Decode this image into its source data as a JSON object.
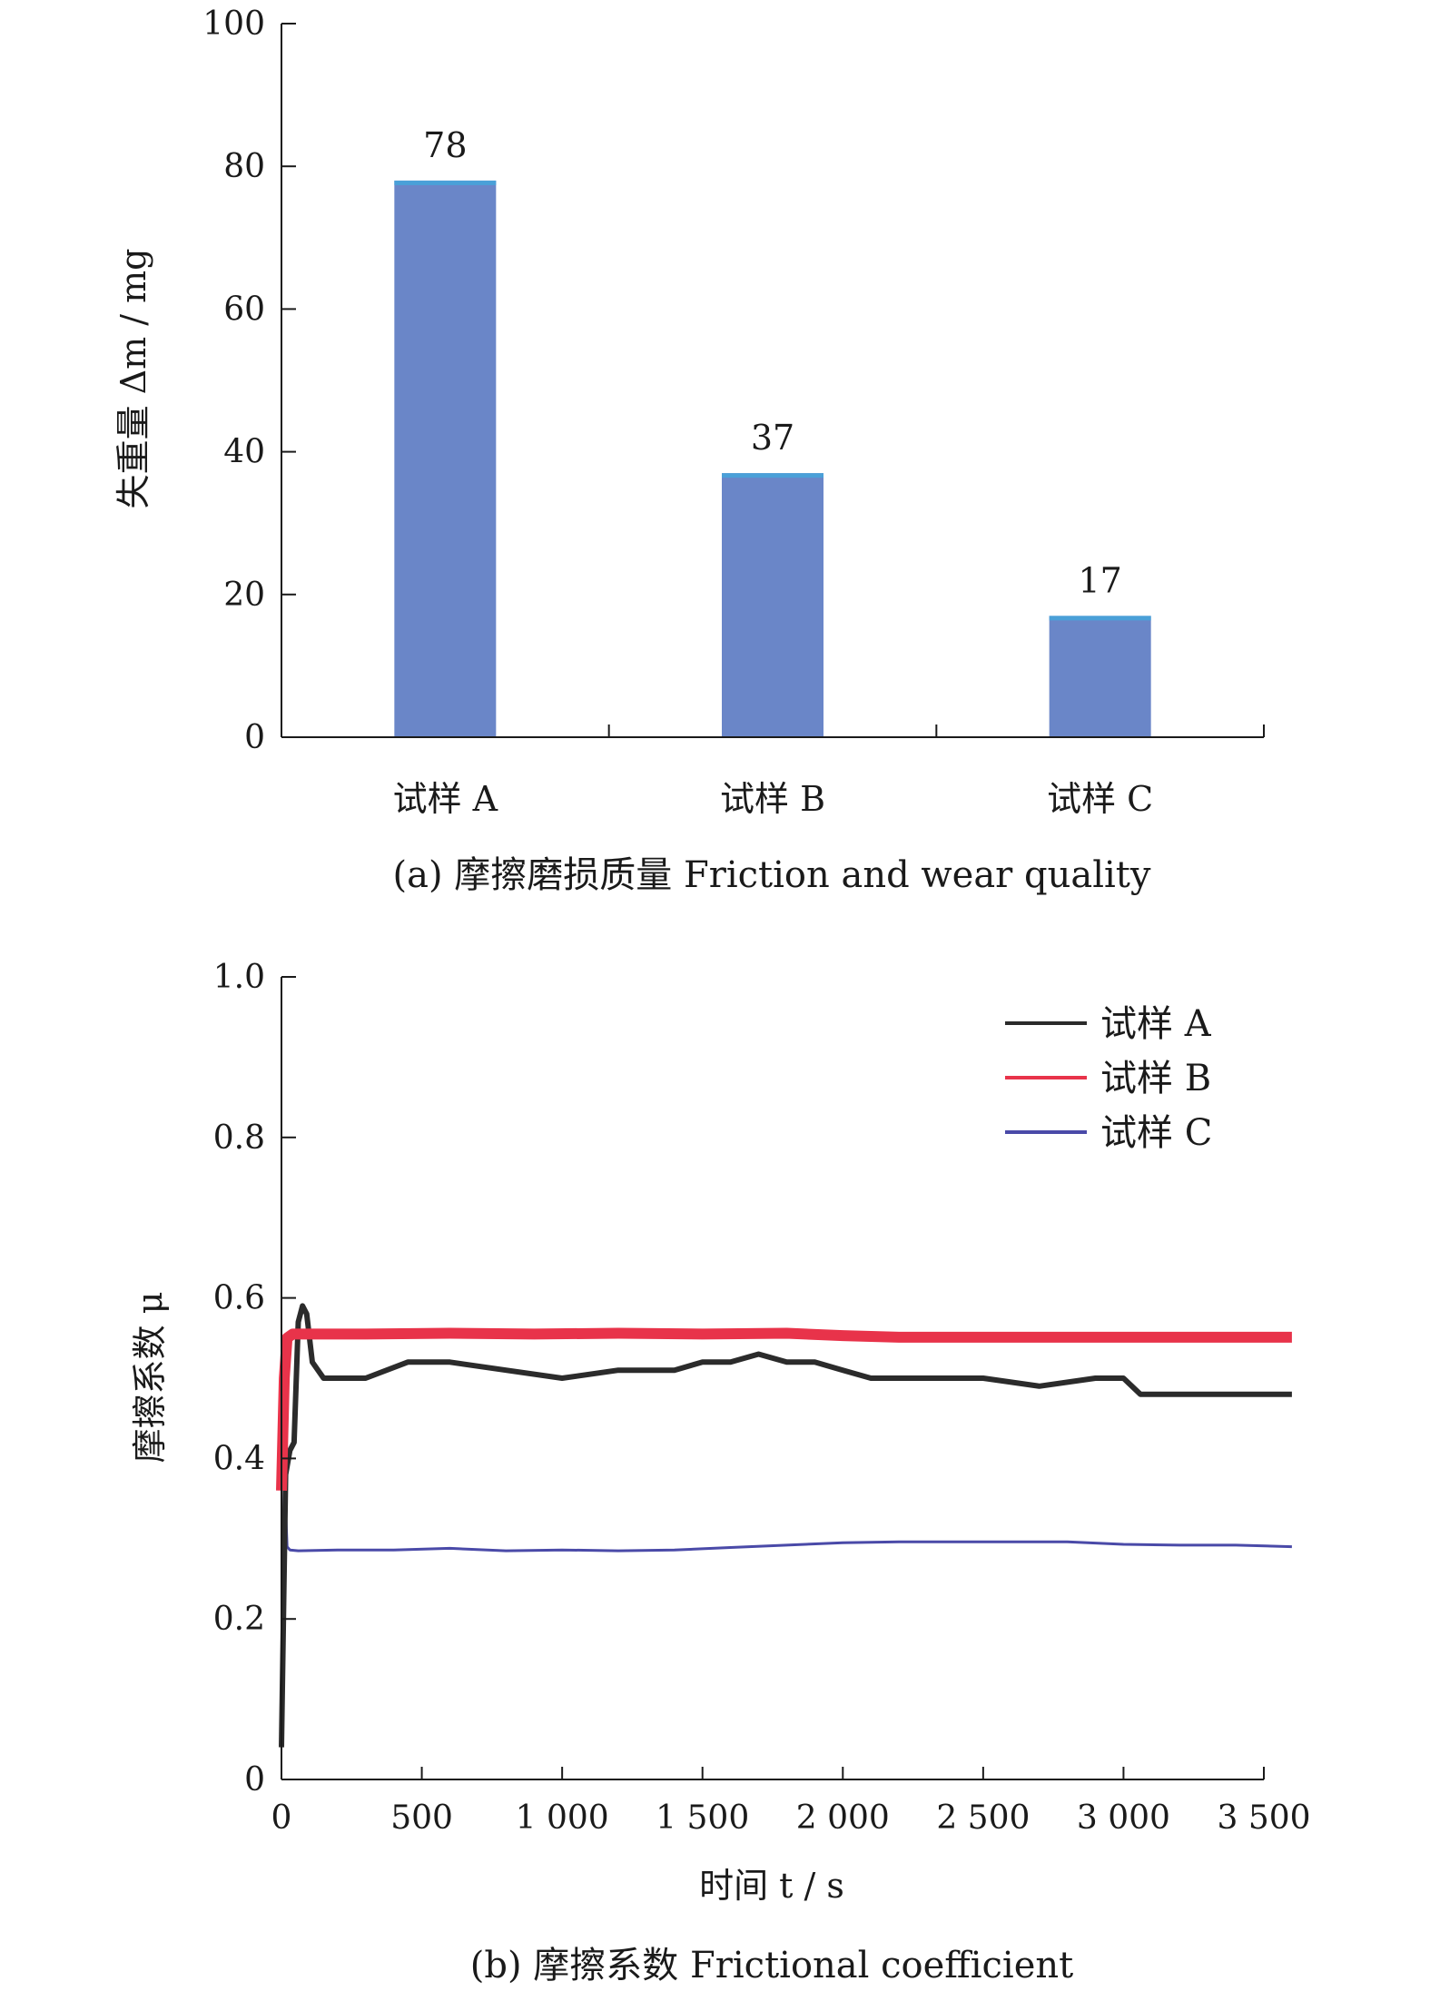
{
  "chart_data": [
    {
      "type": "bar",
      "caption": "(a) 摩擦磨损质量 Friction and wear quality",
      "ylabel": "失重量 Δm / mg",
      "categories": [
        "试样 A",
        "试样 B",
        "试样 C"
      ],
      "values": [
        78,
        37,
        17
      ],
      "value_labels": [
        "78",
        "37",
        "17"
      ],
      "ylim": [
        0,
        100
      ],
      "yticks": [
        0,
        20,
        40,
        60,
        80,
        100
      ],
      "ytick_labels": [
        "0",
        "20",
        "40",
        "60",
        "80",
        "100"
      ],
      "bar_color": "#6a86c8",
      "bar_top_color": "#4aa0d8",
      "grid": false
    },
    {
      "type": "line",
      "caption": "(b) 摩擦系数 Frictional coefficient",
      "xlabel": "时间 t / s",
      "ylabel": "摩擦系数 μ",
      "xlim": [
        0,
        3500
      ],
      "ylim": [
        0,
        1.0
      ],
      "xticks": [
        0,
        500,
        1000,
        1500,
        2000,
        2500,
        3000,
        3500
      ],
      "xtick_labels": [
        "0",
        "500",
        "1 000",
        "1 500",
        "2 000",
        "2 500",
        "3 000",
        "3 500"
      ],
      "yticks": [
        0,
        0.2,
        0.4,
        0.6,
        0.8,
        1.0
      ],
      "ytick_labels": [
        "0",
        "0.2",
        "0.4",
        "0.6",
        "0.8",
        "1.0"
      ],
      "legend_position": "top-right",
      "grid": false,
      "series": [
        {
          "name": "试样 A",
          "color": "#2b2b2b",
          "x": [
            0,
            15,
            30,
            45,
            60,
            75,
            90,
            110,
            150,
            200,
            300,
            450,
            600,
            800,
            1000,
            1200,
            1400,
            1500,
            1600,
            1700,
            1800,
            1900,
            2000,
            2100,
            2300,
            2500,
            2700,
            2900,
            3000,
            3060,
            3200,
            3400,
            3600
          ],
          "y": [
            0.04,
            0.38,
            0.41,
            0.42,
            0.57,
            0.59,
            0.58,
            0.52,
            0.5,
            0.5,
            0.5,
            0.52,
            0.52,
            0.51,
            0.5,
            0.51,
            0.51,
            0.52,
            0.52,
            0.53,
            0.52,
            0.52,
            0.51,
            0.5,
            0.5,
            0.5,
            0.49,
            0.5,
            0.5,
            0.48,
            0.48,
            0.48,
            0.48
          ]
        },
        {
          "name": "试样 B",
          "color": "#e8334a",
          "x": [
            0,
            10,
            20,
            40,
            100,
            300,
            600,
            900,
            1200,
            1500,
            1800,
            2000,
            2200,
            2500,
            2800,
            3100,
            3400,
            3600
          ],
          "y": [
            0.36,
            0.5,
            0.55,
            0.555,
            0.555,
            0.555,
            0.556,
            0.555,
            0.556,
            0.555,
            0.556,
            0.553,
            0.551,
            0.551,
            0.551,
            0.551,
            0.551,
            0.551
          ]
        },
        {
          "name": "试样 C",
          "color": "#4a4aa8",
          "x": [
            0,
            10,
            20,
            30,
            60,
            200,
            400,
            600,
            800,
            1000,
            1200,
            1400,
            1600,
            1800,
            2000,
            2200,
            2400,
            2600,
            2800,
            3000,
            3200,
            3400,
            3600
          ],
          "y": [
            0.05,
            0.38,
            0.29,
            0.286,
            0.285,
            0.286,
            0.286,
            0.288,
            0.285,
            0.286,
            0.285,
            0.286,
            0.289,
            0.292,
            0.295,
            0.296,
            0.296,
            0.296,
            0.296,
            0.293,
            0.292,
            0.292,
            0.29
          ]
        }
      ]
    }
  ]
}
